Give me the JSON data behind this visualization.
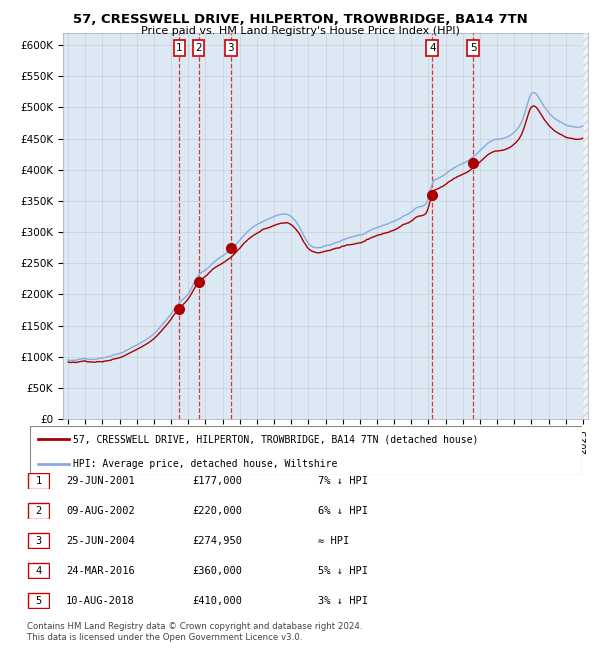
{
  "title": "57, CRESSWELL DRIVE, HILPERTON, TROWBRIDGE, BA14 7TN",
  "subtitle": "Price paid vs. HM Land Registry's House Price Index (HPI)",
  "hpi_color": "#88aadd",
  "price_color": "#aa0000",
  "bg_color": "#dce9f5",
  "sales": [
    {
      "num": 1,
      "date_dec": 2001.49,
      "price": 177000
    },
    {
      "num": 2,
      "date_dec": 2002.6,
      "price": 220000
    },
    {
      "num": 3,
      "date_dec": 2004.48,
      "price": 274950
    },
    {
      "num": 4,
      "date_dec": 2016.23,
      "price": 360000
    },
    {
      "num": 5,
      "date_dec": 2018.6,
      "price": 410000
    }
  ],
  "legend_line1": "57, CRESSWELL DRIVE, HILPERTON, TROWBRIDGE, BA14 7TN (detached house)",
  "legend_line2": "HPI: Average price, detached house, Wiltshire",
  "table_rows": [
    {
      "num": 1,
      "date": "29-JUN-2001",
      "price": "£177,000",
      "hpi": "7% ↓ HPI"
    },
    {
      "num": 2,
      "date": "09-AUG-2002",
      "price": "£220,000",
      "hpi": "6% ↓ HPI"
    },
    {
      "num": 3,
      "date": "25-JUN-2004",
      "price": "£274,950",
      "hpi": "≈ HPI"
    },
    {
      "num": 4,
      "date": "24-MAR-2016",
      "price": "£360,000",
      "hpi": "5% ↓ HPI"
    },
    {
      "num": 5,
      "date": "10-AUG-2018",
      "price": "£410,000",
      "hpi": "3% ↓ HPI"
    }
  ],
  "footer": "Contains HM Land Registry data © Crown copyright and database right 2024.\nThis data is licensed under the Open Government Licence v3.0.",
  "xlim": [
    1994.7,
    2025.3
  ],
  "ylim": [
    0,
    620000
  ],
  "yticks": [
    0,
    50000,
    100000,
    150000,
    200000,
    250000,
    300000,
    350000,
    400000,
    450000,
    500000,
    550000,
    600000
  ],
  "xticks": [
    1995,
    1996,
    1997,
    1998,
    1999,
    2000,
    2001,
    2002,
    2003,
    2004,
    2005,
    2006,
    2007,
    2008,
    2009,
    2010,
    2011,
    2012,
    2013,
    2014,
    2015,
    2016,
    2017,
    2018,
    2019,
    2020,
    2021,
    2022,
    2023,
    2024,
    2025
  ]
}
